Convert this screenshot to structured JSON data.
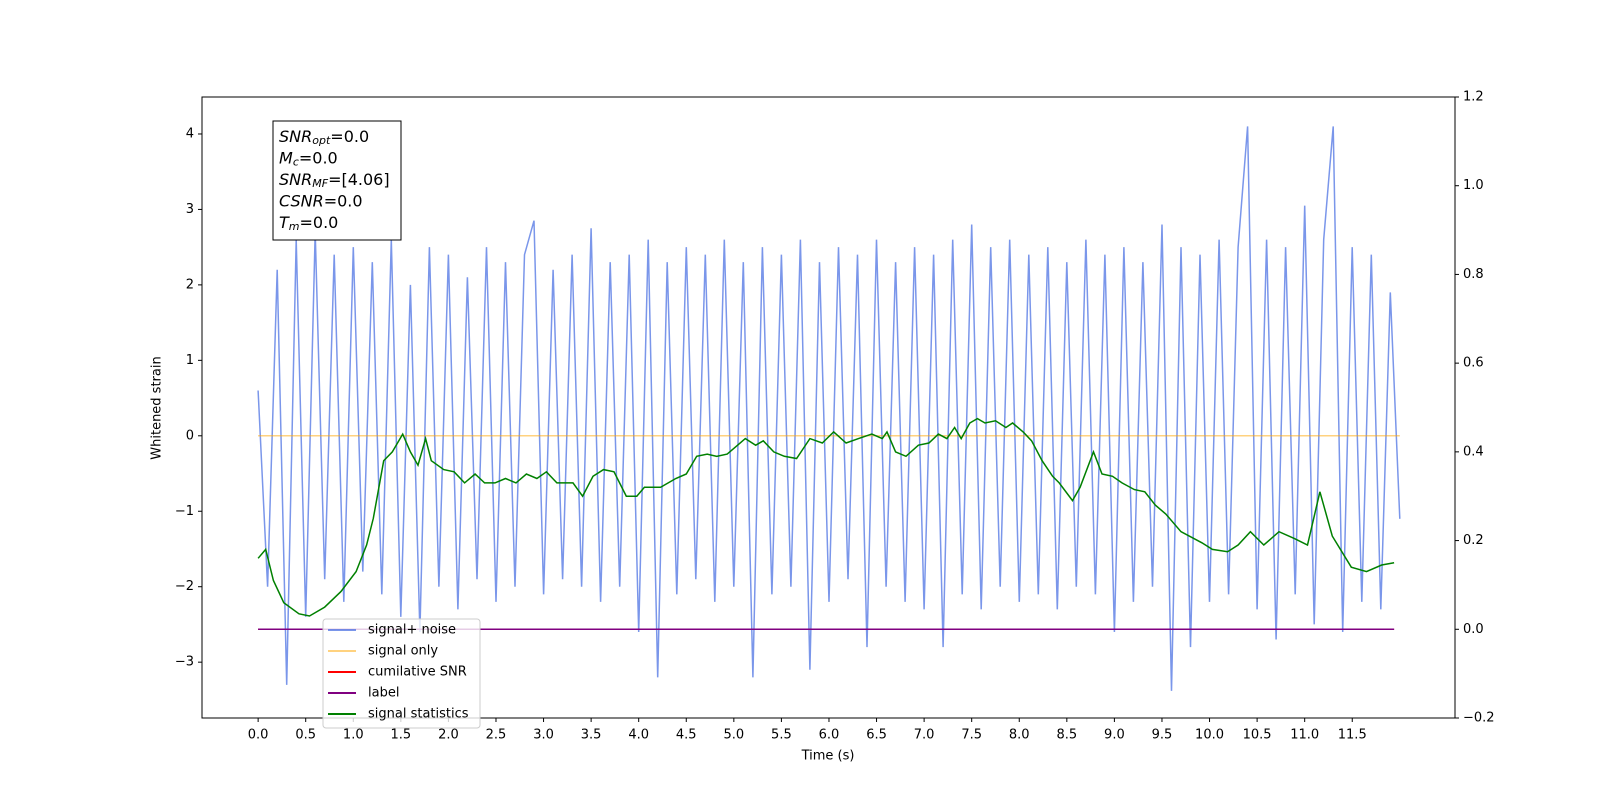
{
  "chart_data": {
    "type": "line",
    "xlabel": "Time (s)",
    "ylabel": "Whitened strain",
    "xlim": [
      -0.59,
      12.58
    ],
    "ylim": [
      -3.74,
      4.49
    ],
    "y2lim": [
      -0.2,
      1.2
    ],
    "xticks": [
      {
        "value": 0,
        "label": "0.0"
      },
      {
        "value": 0.5,
        "label": "0.5"
      },
      {
        "value": 1,
        "label": "1.0"
      },
      {
        "value": 1.5,
        "label": "1.5"
      },
      {
        "value": 2,
        "label": "2.0"
      },
      {
        "value": 2.5,
        "label": "2.5"
      },
      {
        "value": 3,
        "label": "3.0"
      },
      {
        "value": 3.5,
        "label": "3.5"
      },
      {
        "value": 4,
        "label": "4.0"
      },
      {
        "value": 4.5,
        "label": "4.5"
      },
      {
        "value": 5,
        "label": "5.0"
      },
      {
        "value": 5.5,
        "label": "5.5"
      },
      {
        "value": 6,
        "label": "6.0"
      },
      {
        "value": 6.5,
        "label": "6.5"
      },
      {
        "value": 7,
        "label": "7.0"
      },
      {
        "value": 7.5,
        "label": "7.5"
      },
      {
        "value": 8,
        "label": "8.0"
      },
      {
        "value": 8.5,
        "label": "8.5"
      },
      {
        "value": 9,
        "label": "9.0"
      },
      {
        "value": 9.5,
        "label": "9.5"
      },
      {
        "value": 10,
        "label": "10.0"
      },
      {
        "value": 10.5,
        "label": "10.5"
      },
      {
        "value": 11,
        "label": "11.0"
      },
      {
        "value": 11.5,
        "label": "11.5"
      }
    ],
    "yticks": [
      {
        "value": -3,
        "label": "−3"
      },
      {
        "value": -2,
        "label": "−2"
      },
      {
        "value": -1,
        "label": "−1"
      },
      0,
      1,
      2,
      3,
      4
    ],
    "y2ticks": [
      {
        "value": -0.2,
        "label": "−0.2"
      },
      {
        "value": 0,
        "label": "0.0"
      },
      {
        "value": 0.2,
        "label": "0.2"
      },
      {
        "value": 0.4,
        "label": "0.4"
      },
      {
        "value": 0.6,
        "label": "0.6"
      },
      {
        "value": 0.8,
        "label": "0.8"
      },
      {
        "value": 1,
        "label": "1.0"
      },
      {
        "value": 1.2,
        "label": "1.2"
      }
    ],
    "legend": "lower left",
    "annotation_lines": [
      {
        "name": "SNR",
        "sub": "opt",
        "value": "=0.0"
      },
      {
        "name": "M",
        "sub": "c",
        "value": "=0.0"
      },
      {
        "name": "SNR",
        "sub": "MF",
        "value": "=[4.06]"
      },
      {
        "name": "CSNR",
        "value": "=0.0"
      },
      {
        "name": "T",
        "sub": "m",
        "value": "=0.0"
      }
    ],
    "series": [
      {
        "name": "signal+ noise",
        "color": "#4169e1",
        "opacity": 0.7,
        "x": [
          0.0,
          0.1,
          0.2,
          0.3,
          0.4,
          0.5,
          0.6,
          0.7,
          0.8,
          0.9,
          1.0,
          1.1,
          1.2,
          1.3,
          1.4,
          1.5,
          1.6,
          1.7,
          1.8,
          1.9,
          2.0,
          2.1,
          2.2,
          2.3,
          2.4,
          2.5,
          2.6,
          2.7,
          2.8,
          2.9,
          3.0,
          3.1,
          3.2,
          3.3,
          3.4,
          3.5,
          3.6,
          3.7,
          3.8,
          3.9,
          4.0,
          4.1,
          4.2,
          4.3,
          4.4,
          4.5,
          4.6,
          4.7,
          4.8,
          4.9,
          5.0,
          5.1,
          5.2,
          5.3,
          5.4,
          5.5,
          5.6,
          5.7,
          5.8,
          5.9,
          6.0,
          6.1,
          6.2,
          6.3,
          6.4,
          6.5,
          6.6,
          6.7,
          6.8,
          6.9,
          7.0,
          7.1,
          7.2,
          7.3,
          7.4,
          7.5,
          7.6,
          7.7,
          7.8,
          7.9,
          8.0,
          8.1,
          8.2,
          8.3,
          8.4,
          8.5,
          8.6,
          8.7,
          8.8,
          8.9,
          9.0,
          9.1,
          9.2,
          9.3,
          9.4,
          9.5,
          9.6,
          9.7,
          9.8,
          9.9,
          10.0,
          10.1,
          10.2,
          10.3,
          10.4,
          10.5,
          10.6,
          10.7,
          10.8,
          10.9,
          11.0,
          11.1,
          11.2,
          11.3,
          11.4,
          11.5,
          11.6,
          11.7,
          11.8,
          11.9,
          12.0
        ],
        "values": [
          0.6,
          -2.0,
          2.2,
          -3.3,
          2.6,
          -2.4,
          2.7,
          -1.9,
          2.4,
          -2.2,
          2.5,
          -1.8,
          2.3,
          -2.1,
          2.6,
          -2.4,
          2.0,
          -2.6,
          2.5,
          -2.0,
          2.4,
          -2.3,
          2.1,
          -1.9,
          2.5,
          -2.2,
          2.3,
          -2.0,
          2.4,
          2.85,
          -2.1,
          2.2,
          -1.9,
          2.4,
          -2.0,
          2.75,
          -2.2,
          2.3,
          -2.0,
          2.4,
          -2.6,
          2.6,
          -3.2,
          2.3,
          -2.1,
          2.5,
          -1.9,
          2.4,
          -2.2,
          2.6,
          -2.0,
          2.3,
          -3.2,
          2.5,
          -2.1,
          2.4,
          -2.0,
          2.6,
          -3.1,
          2.3,
          -2.2,
          2.5,
          -1.9,
          2.4,
          -2.8,
          2.6,
          -2.0,
          2.3,
          -2.2,
          2.5,
          -2.3,
          2.4,
          -2.8,
          2.6,
          -2.1,
          2.8,
          -2.3,
          2.5,
          -2.0,
          2.6,
          -2.2,
          2.4,
          -2.1,
          2.5,
          -2.3,
          2.3,
          -2.0,
          2.6,
          -2.1,
          2.4,
          -2.6,
          2.5,
          -2.2,
          2.3,
          -2.0,
          2.8,
          -3.38,
          2.5,
          -2.8,
          2.4,
          -2.2,
          2.6,
          -2.1,
          2.5,
          4.1,
          -2.3,
          2.6,
          -2.7,
          2.5,
          -2.1,
          3.05,
          -2.5,
          2.6,
          4.1,
          -2.6,
          2.5,
          -2.2,
          2.4,
          -2.3,
          1.9,
          -1.1
        ]
      },
      {
        "name": "signal only",
        "color": "#ffa500",
        "opacity": 0.5,
        "x": [
          0.0,
          12.0
        ],
        "values": [
          0,
          0
        ]
      },
      {
        "name": "cumilative SNR",
        "color": "#ff0000",
        "opacity": 1,
        "axis": "y2",
        "x": [
          0.0,
          11.94
        ],
        "values": [
          0,
          0
        ]
      },
      {
        "name": "label",
        "color": "#800080",
        "opacity": 1,
        "axis": "y2",
        "x": [
          0.0,
          11.94
        ],
        "values": [
          0,
          0
        ]
      },
      {
        "name": "signal statistics",
        "color": "#008000",
        "opacity": 1,
        "axis": "y2",
        "x": [
          0.0,
          0.08,
          0.16,
          0.27,
          0.43,
          0.54,
          0.7,
          0.87,
          1.03,
          1.14,
          1.21,
          1.32,
          1.41,
          1.52,
          1.6,
          1.68,
          1.76,
          1.82,
          1.95,
          2.06,
          2.17,
          2.28,
          2.38,
          2.49,
          2.6,
          2.71,
          2.82,
          2.93,
          3.03,
          3.14,
          3.31,
          3.41,
          3.52,
          3.63,
          3.74,
          3.87,
          3.98,
          4.06,
          4.23,
          4.39,
          4.5,
          4.61,
          4.72,
          4.82,
          4.93,
          5.04,
          5.12,
          5.23,
          5.31,
          5.42,
          5.53,
          5.66,
          5.8,
          5.93,
          6.05,
          6.18,
          6.31,
          6.45,
          6.56,
          6.61,
          6.7,
          6.81,
          6.94,
          7.05,
          7.15,
          7.24,
          7.32,
          7.39,
          7.48,
          7.56,
          7.64,
          7.75,
          7.86,
          7.93,
          8.04,
          8.13,
          8.24,
          8.35,
          8.42,
          8.56,
          8.64,
          8.78,
          8.87,
          8.98,
          9.08,
          9.21,
          9.32,
          9.43,
          9.54,
          9.7,
          9.92,
          10.03,
          10.19,
          10.3,
          10.43,
          10.57,
          10.73,
          10.89,
          11.03,
          11.16,
          11.29,
          11.49,
          11.65,
          11.81,
          11.94
        ],
        "values": [
          0.16,
          0.18,
          0.11,
          0.06,
          0.035,
          0.03,
          0.05,
          0.085,
          0.13,
          0.19,
          0.25,
          0.38,
          0.4,
          0.44,
          0.4,
          0.37,
          0.43,
          0.38,
          0.36,
          0.355,
          0.33,
          0.35,
          0.33,
          0.33,
          0.34,
          0.33,
          0.35,
          0.34,
          0.355,
          0.33,
          0.33,
          0.3,
          0.345,
          0.36,
          0.355,
          0.3,
          0.3,
          0.32,
          0.32,
          0.34,
          0.35,
          0.39,
          0.395,
          0.39,
          0.395,
          0.415,
          0.43,
          0.415,
          0.425,
          0.4,
          0.39,
          0.385,
          0.43,
          0.42,
          0.445,
          0.42,
          0.43,
          0.44,
          0.43,
          0.445,
          0.4,
          0.39,
          0.415,
          0.42,
          0.44,
          0.43,
          0.455,
          0.43,
          0.465,
          0.475,
          0.465,
          0.47,
          0.455,
          0.465,
          0.445,
          0.425,
          0.38,
          0.345,
          0.33,
          0.29,
          0.32,
          0.4,
          0.35,
          0.345,
          0.33,
          0.315,
          0.31,
          0.28,
          0.26,
          0.22,
          0.195,
          0.18,
          0.175,
          0.19,
          0.22,
          0.19,
          0.22,
          0.205,
          0.19,
          0.31,
          0.21,
          0.14,
          0.13,
          0.145,
          0.15
        ]
      }
    ]
  }
}
